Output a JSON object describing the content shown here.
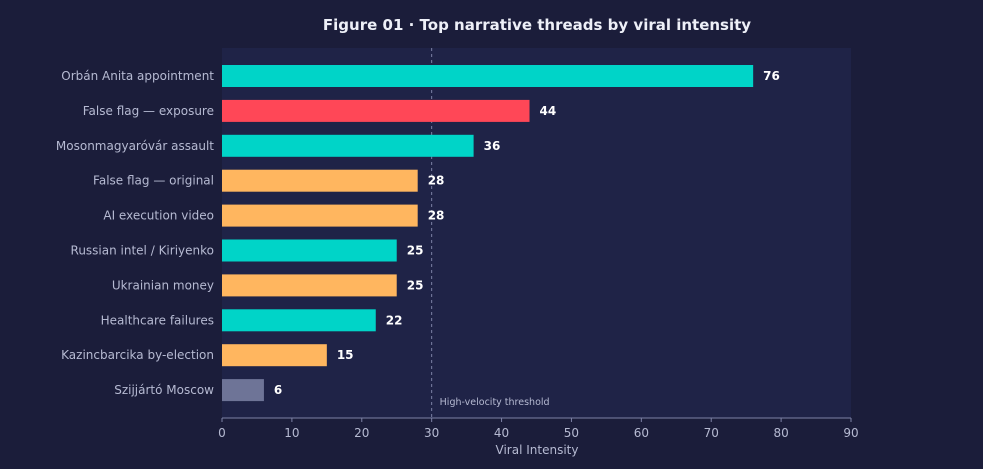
{
  "colors": {
    "background": "#1b1d3a",
    "plot_background": "#1f2347",
    "teal": "#00d4c8",
    "red": "#ff4757",
    "orange": "#ffb65f",
    "slate": "#6e7497",
    "title_text": "#eef0f8",
    "label_text": "#b6bad2",
    "value_text": "#ffffff",
    "threshold_line": "#7d82a6"
  },
  "chart_data": {
    "type": "bar",
    "orientation": "horizontal",
    "title": "Figure 01 · Top narrative threads by viral intensity",
    "xlabel": "Viral Intensity",
    "ylabel": "",
    "xlim": [
      0,
      90
    ],
    "xticks": [
      "0",
      "10",
      "20",
      "30",
      "40",
      "50",
      "60",
      "70",
      "80",
      "90"
    ],
    "grid": false,
    "legend": "none",
    "categories": [
      "Orbán Anita appointment",
      "False flag — exposure",
      "Mosonmagyaróvár assault",
      "False flag — original",
      "AI execution video",
      "Russian intel / Kiriyenko",
      "Ukrainian money",
      "Healthcare failures",
      "Kazincbarcika by-election",
      "Szijjártó Moscow"
    ],
    "values": [
      76,
      44,
      36,
      28,
      28,
      25,
      25,
      22,
      15,
      6
    ],
    "value_labels": [
      "76",
      "44",
      "36",
      "28",
      "28",
      "25",
      "25",
      "22",
      "15",
      "6"
    ],
    "bar_colors": [
      "#00d4c8",
      "#ff4757",
      "#00d4c8",
      "#ffb65f",
      "#ffb65f",
      "#00d4c8",
      "#ffb65f",
      "#00d4c8",
      "#ffb65f",
      "#6e7497"
    ],
    "threshold": {
      "value": 30,
      "label": "High-velocity threshold"
    }
  }
}
